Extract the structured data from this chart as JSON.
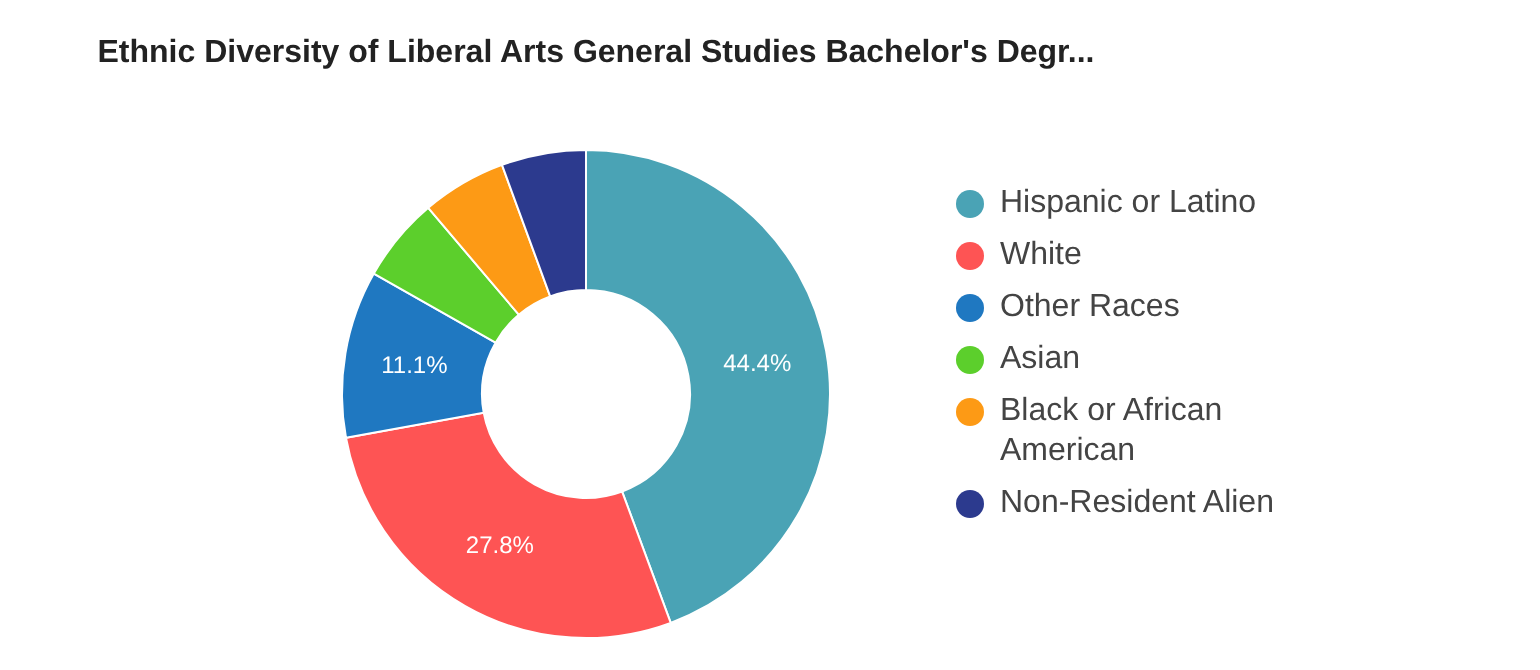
{
  "chart_data": {
    "type": "donut",
    "title": "Ethnic Diversity of Liberal Arts General Studies Bachelor's Degr...",
    "categories": [
      "Hispanic or Latino",
      "White",
      "Other Races",
      "Asian",
      "Black or African American",
      "Non-Resident Alien"
    ],
    "values": [
      44.4,
      27.8,
      11.1,
      5.6,
      5.6,
      5.6
    ],
    "colors": [
      "#4aa3b5",
      "#fe5454",
      "#1f78c1",
      "#5ccf2c",
      "#fd9a15",
      "#2c3a8e"
    ],
    "value_labels": [
      "44.4%",
      "27.8%",
      "11.1%",
      null,
      null,
      null
    ],
    "legend": "right"
  }
}
